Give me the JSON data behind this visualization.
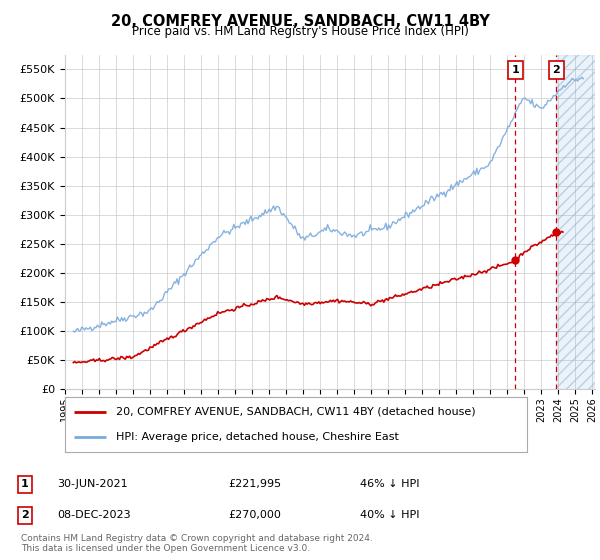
{
  "title": "20, COMFREY AVENUE, SANDBACH, CW11 4BY",
  "subtitle": "Price paid vs. HM Land Registry's House Price Index (HPI)",
  "hpi_label": "HPI: Average price, detached house, Cheshire East",
  "price_label": "20, COMFREY AVENUE, SANDBACH, CW11 4BY (detached house)",
  "hpi_color": "#7aaadd",
  "price_color": "#cc0000",
  "marker_color": "#cc0000",
  "vline_color": "#cc0000",
  "ylim": [
    0,
    575000
  ],
  "yticks": [
    0,
    50000,
    100000,
    150000,
    200000,
    250000,
    300000,
    350000,
    400000,
    450000,
    500000,
    550000
  ],
  "ytick_labels": [
    "£0",
    "£50K",
    "£100K",
    "£150K",
    "£200K",
    "£250K",
    "£300K",
    "£350K",
    "£400K",
    "£450K",
    "£500K",
    "£550K"
  ],
  "xmin": 1995.3,
  "xmax": 2026.2,
  "transaction1_x": 2021.5,
  "transaction1_y": 221995,
  "transaction1_label": "30-JUN-2021",
  "transaction1_price": "£221,995",
  "transaction1_pct": "46% ↓ HPI",
  "transaction2_x": 2023.92,
  "transaction2_y": 270000,
  "transaction2_label": "08-DEC-2023",
  "transaction2_price": "£270,000",
  "transaction2_pct": "40% ↓ HPI",
  "footer": "Contains HM Land Registry data © Crown copyright and database right 2024.\nThis data is licensed under the Open Government Licence v3.0.",
  "grid_color": "#cccccc",
  "bg_color": "#ffffff",
  "legend_border_color": "#aaaaaa",
  "footer_color": "#666666"
}
